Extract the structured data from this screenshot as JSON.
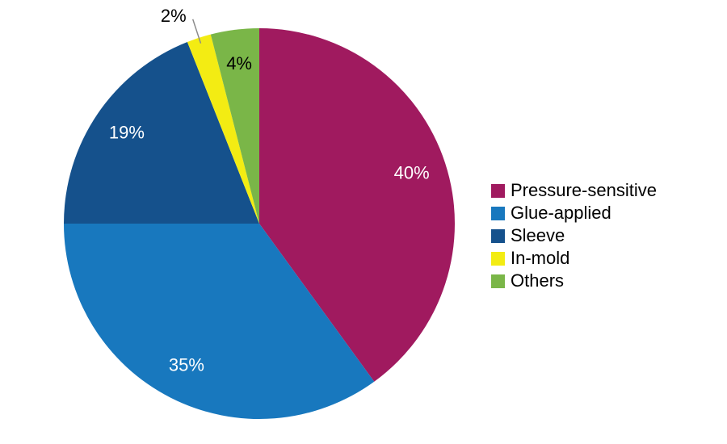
{
  "chart_data": {
    "type": "pie",
    "title": "",
    "start_angle_deg": 0,
    "direction": "clockwise",
    "legend_position": "right",
    "background_color": "#ffffff",
    "slices": [
      {
        "label": "Pressure-sensitive",
        "value": 40,
        "pct_label": "40%",
        "color": "#A01A5F",
        "label_color": "#ffffff",
        "label_outside": false
      },
      {
        "label": "Glue-applied",
        "value": 35,
        "pct_label": "35%",
        "color": "#1878BE",
        "label_color": "#ffffff",
        "label_outside": false
      },
      {
        "label": "Sleeve",
        "value": 19,
        "pct_label": "19%",
        "color": "#15518C",
        "label_color": "#ffffff",
        "label_outside": false
      },
      {
        "label": "In-mold",
        "value": 2,
        "pct_label": "2%",
        "color": "#F3EC13",
        "label_color": "#000000",
        "label_outside": true
      },
      {
        "label": "Others",
        "value": 4,
        "pct_label": "4%",
        "color": "#7AB648",
        "label_color": "#000000",
        "label_outside": false
      }
    ],
    "leader_line_color": "#8a8a8a"
  }
}
